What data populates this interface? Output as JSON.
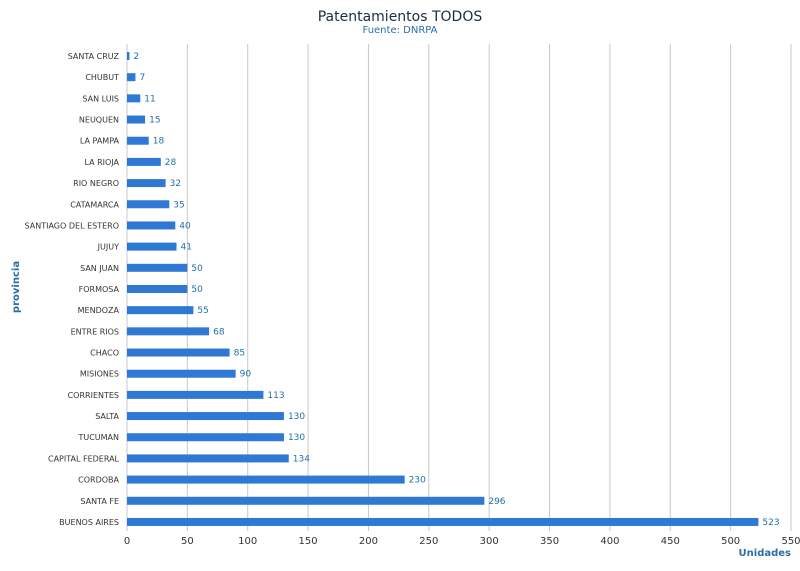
{
  "chart_data": {
    "type": "bar",
    "orientation": "horizontal",
    "title": "Patentamientos TODOS",
    "subtitle": "Fuente: DNRPA",
    "xlabel": "Unidades",
    "ylabel": "provincia",
    "xlim": [
      0,
      550
    ],
    "xticks": [
      0,
      50,
      100,
      150,
      200,
      250,
      300,
      350,
      400,
      450,
      500,
      550
    ],
    "grid": true,
    "legend": "none",
    "bar_color": "#2f78d4",
    "grid_color": "#c8c8c8",
    "categories": [
      "SANTA CRUZ",
      "CHUBUT",
      "SAN LUIS",
      "NEUQUEN",
      "LA PAMPA",
      "LA RIOJA",
      "RIO NEGRO",
      "CATAMARCA",
      "SANTIAGO DEL ESTERO",
      "JUJUY",
      "SAN JUAN",
      "FORMOSA",
      "MENDOZA",
      "ENTRE RIOS",
      "CHACO",
      "MISIONES",
      "CORRIENTES",
      "SALTA",
      "TUCUMAN",
      "CAPITAL FEDERAL",
      "CORDOBA",
      "SANTA FE",
      "BUENOS AIRES"
    ],
    "values": [
      2,
      7,
      11,
      15,
      18,
      28,
      32,
      35,
      40,
      41,
      50,
      50,
      55,
      68,
      85,
      90,
      113,
      130,
      130,
      134,
      230,
      296,
      523
    ]
  }
}
